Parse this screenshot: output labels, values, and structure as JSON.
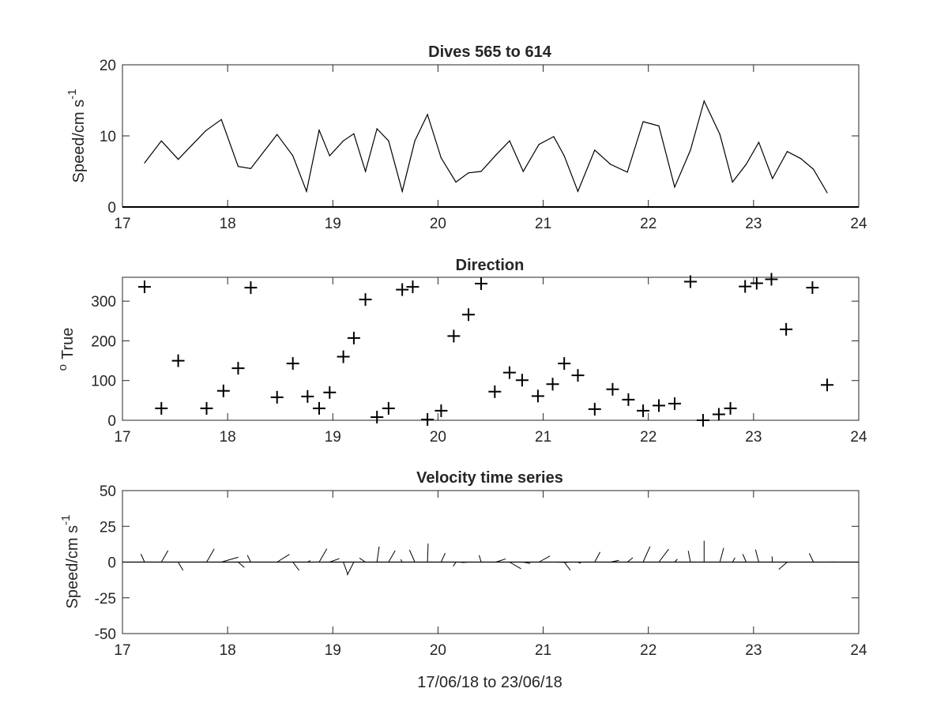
{
  "chart_data": [
    {
      "type": "line",
      "title": "Dives 565 to 614",
      "xlabel": "",
      "ylabel": "Speed/cm s",
      "ylabel_superscript": "-1",
      "xlim": [
        17,
        24
      ],
      "ylim": [
        0,
        20
      ],
      "xticks": [
        17,
        18,
        19,
        20,
        21,
        22,
        23,
        24
      ],
      "yticks": [
        0,
        10,
        20
      ],
      "grid": false,
      "x": [
        17.21,
        17.37,
        17.53,
        17.66,
        17.79,
        17.94,
        18.1,
        18.22,
        18.47,
        18.62,
        18.75,
        18.87,
        18.97,
        19.1,
        19.2,
        19.31,
        19.42,
        19.53,
        19.66,
        19.78,
        19.9,
        20.03,
        20.17,
        20.29,
        20.41,
        20.55,
        20.68,
        20.81,
        20.96,
        21.1,
        21.2,
        21.33,
        21.49,
        21.64,
        21.8,
        21.95,
        22.1,
        22.25,
        22.4,
        22.53,
        22.68,
        22.8,
        22.93,
        23.05,
        23.18,
        23.32,
        23.45,
        23.57,
        23.7
      ],
      "y": [
        6.2,
        9.3,
        6.7,
        8.7,
        10.7,
        12.3,
        5.7,
        5.4,
        10.2,
        7.2,
        2.2,
        10.8,
        7.2,
        9.3,
        10.3,
        5.0,
        11.0,
        9.3,
        2.2,
        9.3,
        13.0,
        6.9,
        3.5,
        4.8,
        5.0,
        7.3,
        9.3,
        5.0,
        8.8,
        9.9,
        7.2,
        2.2,
        8.0,
        6.0,
        4.9,
        12.0,
        11.4,
        2.8,
        8.0,
        14.9,
        10.2,
        3.5,
        6.0,
        9.1,
        4.0,
        7.8,
        6.8,
        5.3,
        2.0
      ]
    },
    {
      "type": "scatter",
      "title": "Direction",
      "xlabel": "",
      "ylabel": "True",
      "ylabel_superscript": "o",
      "xlim": [
        17,
        24
      ],
      "ylim": [
        0,
        360
      ],
      "xticks": [
        17,
        18,
        19,
        20,
        21,
        22,
        23,
        24
      ],
      "yticks": [
        0,
        100,
        200,
        300
      ],
      "marker": "+",
      "grid": false,
      "x": [
        17.21,
        17.37,
        17.53,
        17.8,
        17.96,
        18.1,
        18.22,
        18.47,
        18.62,
        18.76,
        18.87,
        18.97,
        19.1,
        19.2,
        19.31,
        19.42,
        19.53,
        19.66,
        19.76,
        19.9,
        20.03,
        20.15,
        20.29,
        20.41,
        20.54,
        20.68,
        20.8,
        20.95,
        21.09,
        21.2,
        21.33,
        21.49,
        21.66,
        21.81,
        21.95,
        22.1,
        22.25,
        22.4,
        22.52,
        22.67,
        22.78,
        22.92,
        23.03,
        23.17,
        23.31,
        23.56,
        23.7
      ],
      "y": [
        336,
        30,
        150,
        30,
        74,
        131,
        334,
        58,
        143,
        60,
        30,
        70,
        160,
        207,
        304,
        8,
        30,
        329,
        336,
        2,
        24,
        212,
        266,
        344,
        72,
        120,
        101,
        61,
        91,
        143,
        113,
        28,
        78,
        52,
        24,
        37,
        42,
        349,
        0,
        15,
        30,
        337,
        345,
        355,
        229,
        334,
        89
      ]
    },
    {
      "type": "quiver",
      "title": "Velocity time series",
      "xlabel": "17/06/18 to 23/06/18",
      "ylabel": "Speed/cm s",
      "ylabel_superscript": "-1",
      "xlim": [
        17,
        24
      ],
      "ylim": [
        -50,
        50
      ],
      "xticks": [
        17,
        18,
        19,
        20,
        21,
        22,
        23,
        24
      ],
      "yticks": [
        -50,
        -25,
        0,
        25,
        50
      ],
      "grid": false,
      "x": [
        17.21,
        17.37,
        17.53,
        17.8,
        17.94,
        18.1,
        18.22,
        18.47,
        18.62,
        18.76,
        18.87,
        18.97,
        19.1,
        19.2,
        19.31,
        19.42,
        19.53,
        19.66,
        19.78,
        19.9,
        20.03,
        20.17,
        20.29,
        20.41,
        20.55,
        20.68,
        20.81,
        20.96,
        21.1,
        21.2,
        21.33,
        21.49,
        21.64,
        21.8,
        21.95,
        22.1,
        22.25,
        22.4,
        22.53,
        22.68,
        22.8,
        22.93,
        23.05,
        23.18,
        23.32,
        23.57,
        23.7
      ],
      "speed": [
        6.2,
        9.3,
        6.7,
        10.7,
        12.3,
        5.7,
        5.4,
        10.2,
        7.2,
        2.2,
        10.8,
        7.2,
        9.3,
        10.3,
        5.0,
        11.0,
        9.3,
        2.2,
        9.3,
        13.0,
        6.9,
        3.5,
        4.8,
        5.0,
        7.3,
        9.3,
        5.0,
        8.8,
        9.9,
        7.2,
        2.2,
        8.0,
        6.0,
        4.9,
        12.0,
        11.4,
        2.8,
        8.0,
        14.9,
        10.2,
        3.5,
        6.0,
        9.1,
        4.0,
        7.8,
        6.8,
        5.3
      ],
      "direction": [
        336,
        30,
        150,
        30,
        74,
        131,
        334,
        58,
        143,
        60,
        30,
        70,
        160,
        207,
        304,
        8,
        30,
        329,
        336,
        2,
        24,
        212,
        266,
        344,
        72,
        120,
        101,
        61,
        91,
        143,
        113,
        28,
        78,
        52,
        24,
        37,
        42,
        349,
        0,
        15,
        30,
        337,
        345,
        355,
        229,
        334,
        89
      ]
    }
  ]
}
